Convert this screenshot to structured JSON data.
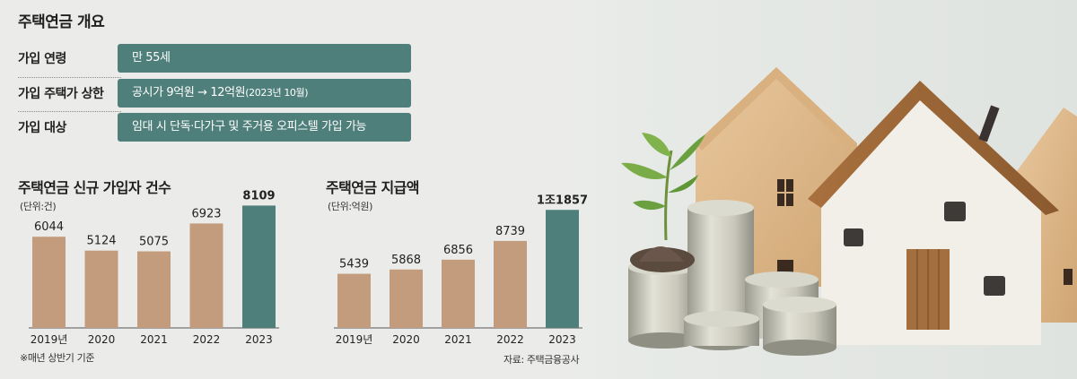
{
  "overview": {
    "title": "주택연금 개요",
    "rows": [
      {
        "label": "가입 연령",
        "value": "만 55세",
        "note": ""
      },
      {
        "label": "가입 주택가 상한",
        "value": "공시가 9억원 → 12억원",
        "note": "(2023년 10월)"
      },
      {
        "label": "가입 대상",
        "value": "임대 시 단독·다가구 및 주거용 오피스텔 가입 가능",
        "note": ""
      }
    ]
  },
  "colors": {
    "bar_past": "#c39c7d",
    "bar_current": "#4f7f7b",
    "panel": "#4f7f7b"
  },
  "chart_data": [
    {
      "type": "bar",
      "title": "주택연금 신규 가입자 건수",
      "unit": "(단위:건)",
      "categories": [
        "2019년",
        "2020",
        "2021",
        "2022",
        "2023"
      ],
      "values": [
        6044,
        5124,
        5075,
        6923,
        8109
      ],
      "value_labels": [
        "6044",
        "5124",
        "5075",
        "6923",
        "8109"
      ],
      "ylim": [
        0,
        9500
      ],
      "highlight_index": 4,
      "footnote": "※매년 상반기 기준"
    },
    {
      "type": "bar",
      "title": "주택연금 지급액",
      "unit": "(단위:억원)",
      "categories": [
        "2019년",
        "2020",
        "2021",
        "2022",
        "2023"
      ],
      "values": [
        5439,
        5868,
        6856,
        8739,
        11857
      ],
      "value_labels": [
        "5439",
        "5868",
        "6856",
        "8739",
        "1조1857"
      ],
      "ylim": [
        0,
        14400
      ],
      "highlight_index": 4,
      "source": "자료: 주택금융공사"
    }
  ]
}
